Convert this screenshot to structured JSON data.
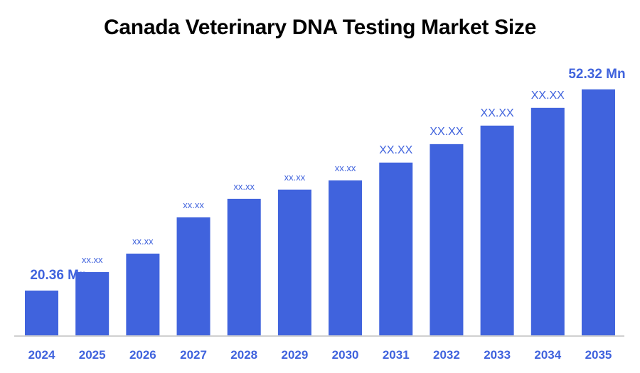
{
  "title": "Canada Veterinary DNA Testing Market Size",
  "colors": {
    "bar": "#4063DD",
    "label": "#4063DD",
    "axis": "#D0D0D0",
    "title": "#000000"
  },
  "chart_data": {
    "type": "bar",
    "title": "Canada Veterinary DNA Testing Market Size",
    "xlabel": "",
    "ylabel": "",
    "categories": [
      "2024",
      "2025",
      "2026",
      "2027",
      "2028",
      "2029",
      "2030",
      "2031",
      "2032",
      "2033",
      "2034",
      "2035"
    ],
    "values": [
      20.36,
      23.3,
      26.23,
      31.99,
      34.93,
      36.4,
      37.86,
      40.69,
      43.62,
      46.56,
      49.38,
      52.32
    ],
    "data_labels": [
      "20.36 Mn",
      "xx.xx",
      "xx.xx",
      "xx.xx",
      "xx.xx",
      "xx.xx",
      "xx.xx",
      "XX.XX",
      "XX.XX",
      "XX.XX",
      "XX.XX",
      "52.32 Mn"
    ],
    "ylim": [
      13.25,
      55
    ],
    "grid": false,
    "legend": "none"
  }
}
